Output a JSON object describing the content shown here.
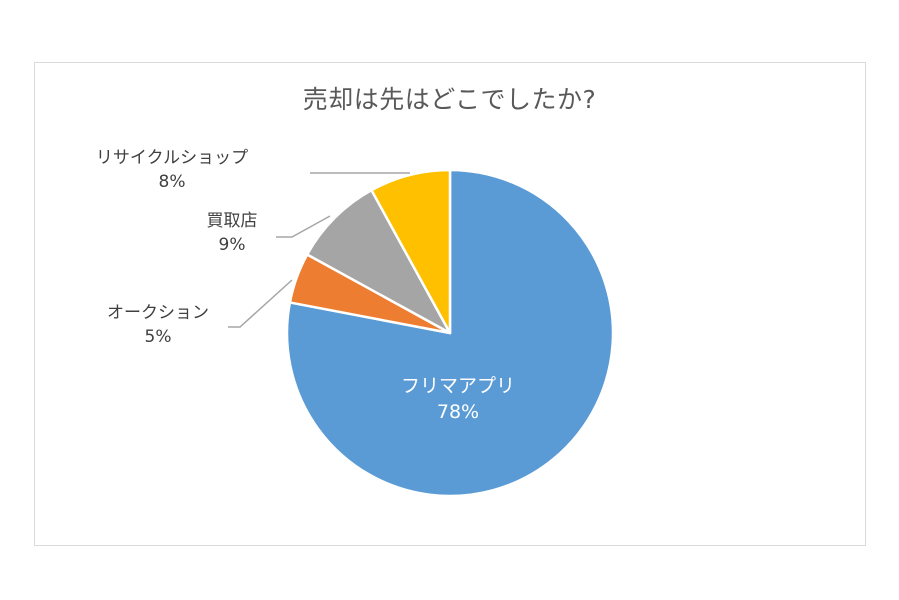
{
  "chart_data": {
    "type": "pie",
    "title": "売却は先はどこでしたか?",
    "slices": [
      {
        "label": "フリマアプリ",
        "percent_label": "78%",
        "value": 78,
        "color": "#5b9bd5"
      },
      {
        "label": "オークション",
        "percent_label": "5%",
        "value": 5,
        "color": "#ed7d31"
      },
      {
        "label": "買取店",
        "percent_label": "9%",
        "value": 9,
        "color": "#a5a5a5"
      },
      {
        "label": "リサイクルショップ",
        "percent_label": "8%",
        "value": 8,
        "color": "#ffc000"
      }
    ],
    "legend": "none",
    "data_labels": "category-and-percent"
  }
}
